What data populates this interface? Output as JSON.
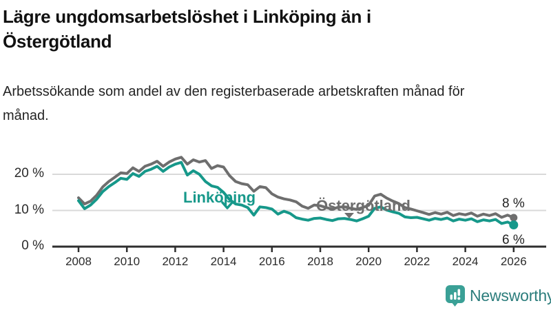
{
  "chart_data": {
    "type": "line",
    "title": "Lägre ungdomsarbetslöshet i Linköping än i Östergötland",
    "subtitle": "Arbetssökande som andel av den registerbaserade arbetskraften månad för månad.",
    "unit": "%",
    "xlim": [
      2008,
      2026
    ],
    "ylim": [
      0,
      26
    ],
    "x_start": 2008.0,
    "x_step": 0.25,
    "x_tick_labels": [
      "2008",
      "2010",
      "2012",
      "2014",
      "2016",
      "2018",
      "2020",
      "2022",
      "2024",
      "2026"
    ],
    "y_tick_labels": [
      "0 %",
      "10 %",
      "20 %"
    ],
    "y_tick_values": [
      0,
      10,
      20
    ],
    "grid": "horizontal-only",
    "legend": "inline-series-labels",
    "series": [
      {
        "key": "ostergotland",
        "name": "Östergötland",
        "color": "#6e6e6e",
        "end_label": "8 %",
        "end_value": 8,
        "values": [
          13.5,
          11.8,
          12.6,
          14.2,
          16.5,
          18.0,
          19.2,
          20.4,
          20.2,
          21.8,
          20.8,
          22.2,
          22.8,
          23.6,
          22.2,
          23.4,
          24.2,
          24.7,
          22.8,
          24.0,
          23.4,
          23.8,
          21.6,
          22.4,
          22.0,
          19.6,
          18.0,
          17.4,
          17.1,
          15.3,
          16.6,
          16.3,
          14.6,
          13.7,
          13.2,
          12.9,
          12.4,
          11.2,
          10.6,
          11.5,
          11.3,
          10.8,
          10.4,
          10.9,
          11.0,
          10.6,
          10.3,
          10.8,
          11.4,
          14.0,
          14.5,
          13.4,
          12.6,
          11.9,
          10.8,
          10.4,
          9.9,
          9.4,
          8.9,
          9.4,
          9.0,
          9.5,
          8.6,
          9.1,
          8.8,
          9.3,
          8.4,
          9.0,
          8.6,
          9.1,
          8.1,
          8.7,
          8.0
        ]
      },
      {
        "key": "linkoping",
        "name": "Linköping",
        "color": "#16988a",
        "end_label": "6 %",
        "end_value": 6,
        "values": [
          12.7,
          10.5,
          11.5,
          13.1,
          15.2,
          16.6,
          17.7,
          18.9,
          18.6,
          20.2,
          19.4,
          20.8,
          21.4,
          22.2,
          20.8,
          22.0,
          22.8,
          23.3,
          19.8,
          21.0,
          20.0,
          18.0,
          16.8,
          16.4,
          15.0,
          13.0,
          11.8,
          11.5,
          10.8,
          8.7,
          11.0,
          10.8,
          10.4,
          9.0,
          9.8,
          9.2,
          8.0,
          7.6,
          7.3,
          7.8,
          7.9,
          7.5,
          7.2,
          7.7,
          7.8,
          7.5,
          7.1,
          7.7,
          8.4,
          10.6,
          11.0,
          10.1,
          9.6,
          9.2,
          8.2,
          8.0,
          8.1,
          7.7,
          7.3,
          7.8,
          7.5,
          7.9,
          7.1,
          7.6,
          7.3,
          7.7,
          6.9,
          7.4,
          7.1,
          7.5,
          6.4,
          6.8,
          6.0
        ]
      }
    ]
  },
  "branding": {
    "name": "Newsworthy",
    "icon": "bar-chart-speech-bubble-icon",
    "icon_color": "#3aa096",
    "text_color": "#2c7d7c"
  },
  "colors": {
    "grid": "#d9d9d9",
    "axis": "#2e2e2e",
    "tick_text": "#2a2a2a",
    "title_text": "#111111",
    "subtitle_text": "#232323"
  }
}
